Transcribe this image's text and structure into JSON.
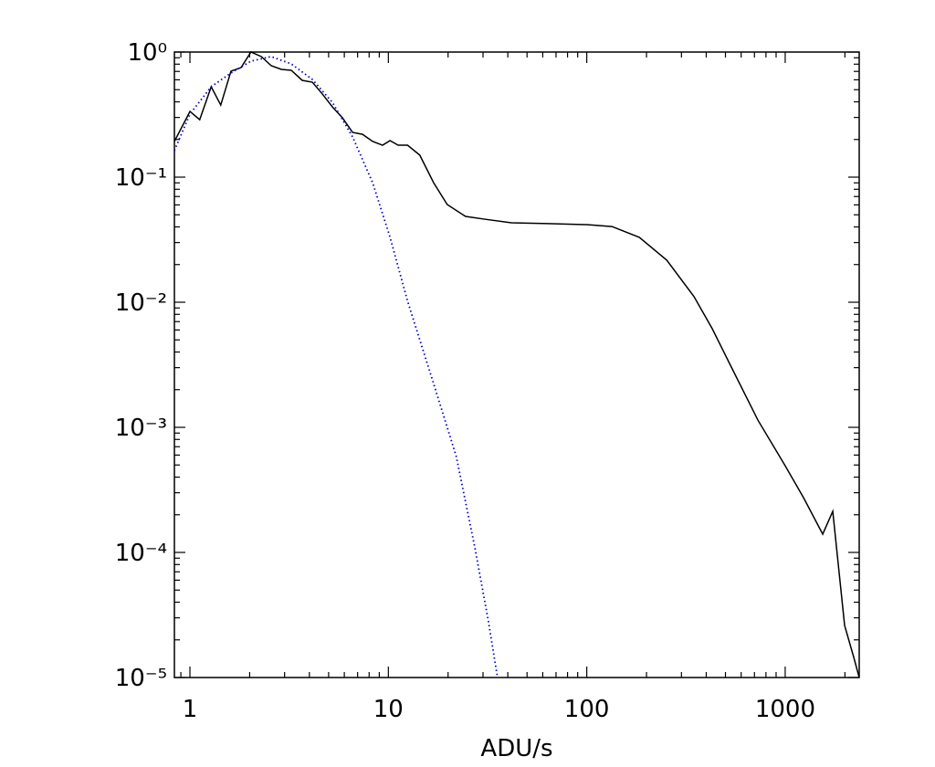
{
  "chart_data": {
    "type": "line",
    "xlabel": "ADU/s",
    "xscale": "log",
    "yscale": "log",
    "xlim": [
      0.835,
      2361
    ],
    "ylim": [
      1e-05,
      1
    ],
    "xticks": [
      1,
      10,
      100,
      1000
    ],
    "yticks": [
      {
        "value": 1,
        "label": "10⁰"
      },
      {
        "value": 0.1,
        "label": "10⁻¹"
      },
      {
        "value": 0.01,
        "label": "10⁻²"
      },
      {
        "value": 0.001,
        "label": "10⁻³"
      },
      {
        "value": 0.0001,
        "label": "10⁻⁴"
      },
      {
        "value": 1e-05,
        "label": "10⁻⁵"
      }
    ],
    "xminorticks": [
      0.9,
      2,
      3,
      4,
      5,
      6,
      7,
      8,
      9,
      20,
      30,
      40,
      50,
      60,
      70,
      80,
      90,
      200,
      300,
      400,
      500,
      600,
      700,
      800,
      900,
      2000
    ],
    "yminorticks": [
      2e-05,
      3e-05,
      4e-05,
      5e-05,
      6e-05,
      7e-05,
      8e-05,
      9e-05,
      0.0002,
      0.0003,
      0.0004,
      0.0005,
      0.0006,
      0.0007,
      0.0008,
      0.0009,
      0.002,
      0.003,
      0.004,
      0.005,
      0.006,
      0.007,
      0.008,
      0.009,
      0.02,
      0.03,
      0.04,
      0.05,
      0.06,
      0.07,
      0.08,
      0.09,
      0.2,
      0.3,
      0.4,
      0.5,
      0.6,
      0.7,
      0.8,
      0.9
    ],
    "series": [
      {
        "color": "#000000",
        "linestyle": "solid",
        "x": [
          0.835,
          1,
          1.12,
          1.28,
          1.43,
          1.61,
          1.81,
          2.03,
          2.29,
          2.57,
          2.89,
          3.24,
          3.68,
          4.14,
          4.65,
          5.22,
          5.87,
          6.6,
          7.41,
          8.33,
          9.35,
          10.2,
          11.2,
          12.5,
          14.4,
          16.9,
          19.8,
          24.5,
          30.3,
          41.7,
          63.7,
          100,
          134,
          184,
          253,
          347,
          429,
          530,
          729,
          1000,
          1237,
          1546,
          1737,
          1993,
          2216,
          2361
        ],
        "values": [
          0.193,
          0.335,
          0.288,
          0.528,
          0.377,
          0.703,
          0.751,
          1.0,
          0.92,
          0.777,
          0.727,
          0.715,
          0.594,
          0.574,
          0.462,
          0.365,
          0.298,
          0.228,
          0.22,
          0.193,
          0.18,
          0.196,
          0.18,
          0.18,
          0.15,
          0.0904,
          0.0604,
          0.0485,
          0.0462,
          0.0432,
          0.0425,
          0.0417,
          0.0403,
          0.033,
          0.0217,
          0.0111,
          0.00614,
          0.00313,
          0.00114,
          0.000493,
          0.000274,
          0.00014,
          0.000213,
          2.61e-05,
          1.45e-05,
          1e-05
        ]
      },
      {
        "color": "#0000cc",
        "linestyle": "dotted",
        "x": [
          0.835,
          1,
          1.28,
          1.61,
          2.03,
          2.57,
          3.24,
          4.14,
          5.22,
          6.6,
          8.33,
          10.2,
          12.5,
          16.9,
          22.0,
          27.3,
          31.9,
          35.5
        ],
        "values": [
          0.163,
          0.319,
          0.528,
          0.68,
          0.845,
          0.92,
          0.804,
          0.604,
          0.397,
          0.21,
          0.0904,
          0.033,
          0.0102,
          0.00224,
          0.000584,
          0.000109,
          2.84e-05,
          1e-05
        ]
      }
    ]
  }
}
